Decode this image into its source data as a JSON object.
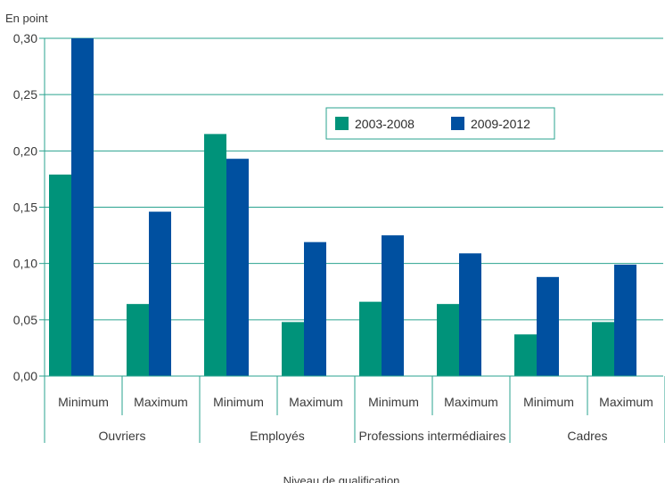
{
  "chart_data": {
    "type": "bar",
    "ylabel": "En point",
    "xlabel": "Niveau de qualification",
    "ylim": [
      0,
      0.3
    ],
    "y_ticks": [
      "0,00",
      "0,05",
      "0,10",
      "0,15",
      "0,20",
      "0,25",
      "0,30"
    ],
    "grid": true,
    "legend_position": "top-right",
    "groups": [
      "Ouvriers",
      "Employés",
      "Professions intermédiaires",
      "Cadres"
    ],
    "categories": [
      "Minimum",
      "Maximum",
      "Minimum",
      "Maximum",
      "Minimum",
      "Maximum",
      "Minimum",
      "Maximum"
    ],
    "series": [
      {
        "name": "2003-2008",
        "color": "#00937a",
        "values": [
          0.179,
          0.064,
          0.215,
          0.048,
          0.066,
          0.064,
          0.037,
          0.048
        ]
      },
      {
        "name": "2009-2012",
        "color": "#0050a0",
        "values": [
          0.3,
          0.146,
          0.193,
          0.119,
          0.125,
          0.109,
          0.088,
          0.099
        ]
      }
    ]
  },
  "colors": {
    "grid": "#2aa38f",
    "axis": "#2aa38f",
    "text": "#3a3a3a"
  }
}
